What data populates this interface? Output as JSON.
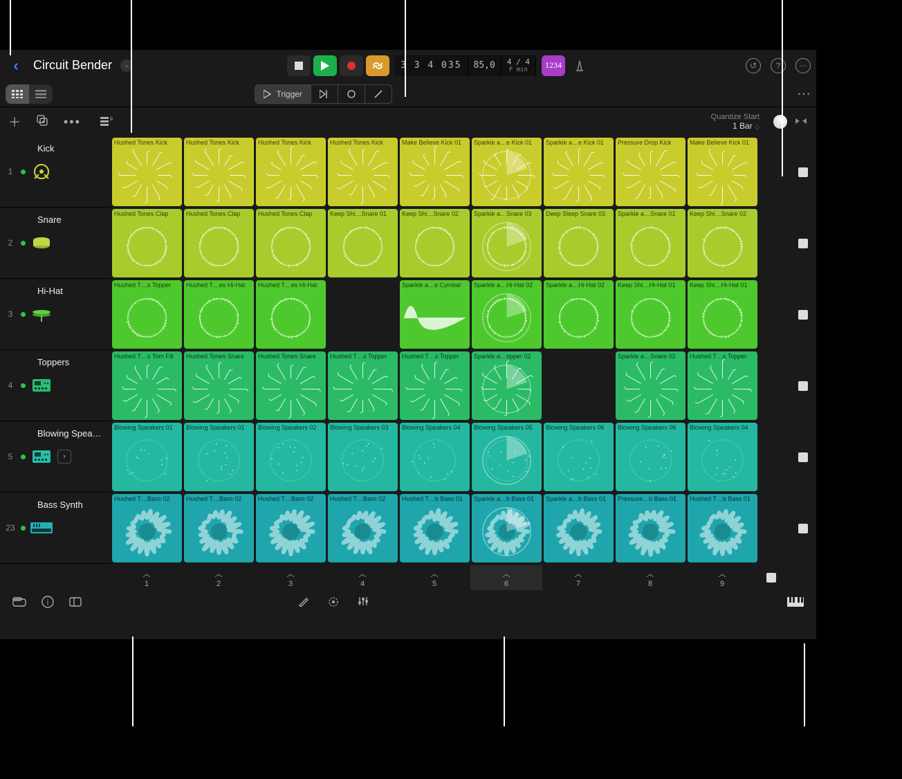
{
  "project": {
    "title": "Circuit Bender"
  },
  "transport": {
    "position": "3 3 4 035",
    "tempo": "85,0",
    "sig_top": "4 / 4",
    "sig_bot": "F min",
    "count": "1234"
  },
  "mode": {
    "trigger": "Trigger"
  },
  "quantize": {
    "label": "Quantize Start",
    "value": "1 Bar"
  },
  "tracks": [
    {
      "num": "1",
      "name": "Kick",
      "color": "#d4d63f",
      "icon": "kick"
    },
    {
      "num": "2",
      "name": "Snare",
      "color": "#c2d63f",
      "icon": "snare"
    },
    {
      "num": "3",
      "name": "Hi-Hat",
      "color": "#5ad23f",
      "icon": "hihat"
    },
    {
      "num": "4",
      "name": "Toppers",
      "color": "#2abf6d",
      "icon": "pad"
    },
    {
      "num": "5",
      "name": "Blowing Spea…",
      "color": "#26bfa8",
      "icon": "pad",
      "expandable": true
    },
    {
      "num": "23",
      "name": "Bass Synth",
      "color": "#24b0b8",
      "icon": "synth"
    }
  ],
  "row_colors": [
    "#c9cc2d",
    "#a9cc2d",
    "#4ec92d",
    "#2bbb67",
    "#24b8a0",
    "#1fa6ad"
  ],
  "wave_type": [
    "burst",
    "ring",
    "ring",
    "burst",
    "dots",
    "blob"
  ],
  "highlight_col": 5,
  "clips": [
    [
      "Hushed Tones Kick",
      "Hushed Tones Kick",
      "Hushed Tones Kick",
      "Hushed Tones Kick",
      "Make Believe Kick 01",
      "Sparkle a…e Kick 01",
      "Sparkle a…e Kick 01",
      "Pressure Drop Kick",
      "Make Believe Kick 01"
    ],
    [
      "Hushed Tones Clap",
      "Hushed Tones Clap",
      "Hushed Tones Clap",
      "Keep Shi…Snare 01",
      "Keep Shi…Snare 02",
      "Sparkle a…Snare 03",
      "Deep Sleep Snare 03",
      "Sparkle a…Snare 01",
      "Keep Shi…Snare 02"
    ],
    [
      "Hushed T…s Topper",
      "Hushed T…es Hi-Hat",
      "Hushed T…es Hi-Hat",
      "",
      "Sparkle a…e Cymbal",
      "Sparkle a…Hi-Hat 02",
      "Sparkle a…Hi-Hat 02",
      "Keep Shi…Hi-Hat 01",
      "Keep Shi…Hi-Hat 01"
    ],
    [
      "Hushed T…s Tom Fill",
      "Hushed Tones Snare",
      "Hushed Tones Snare",
      "Hushed T…s Topper",
      "Hushed T…s Topper",
      "Sparkle a…opper 02",
      "",
      "Sparkle a…Snare 02",
      "Hushed T…s Topper"
    ],
    [
      "Blowing Speakers 01",
      "Blowing Speakers 01",
      "Blowing Speakers 02",
      "Blowing Speakers 03",
      "Blowing Speakers 04",
      "Blowing Speakers 05",
      "Blowing Speakers 06",
      "Blowing Speakers 06",
      "Blowing Speakers 04"
    ],
    [
      "Hushed T…Bass 02",
      "Hushed T…Bass 02",
      "Hushed T…Bass 02",
      "Hushed T…Bass 02",
      "Hushed T…b Bass 01",
      "Sparkle a…b Bass 01",
      "Sparkle a…b Bass 01",
      "Pressure…b Bass 01",
      "Hushed T…b Bass 01"
    ]
  ],
  "scenes": [
    "1",
    "2",
    "3",
    "4",
    "5",
    "6",
    "7",
    "8",
    "9"
  ],
  "active_scene": 5
}
